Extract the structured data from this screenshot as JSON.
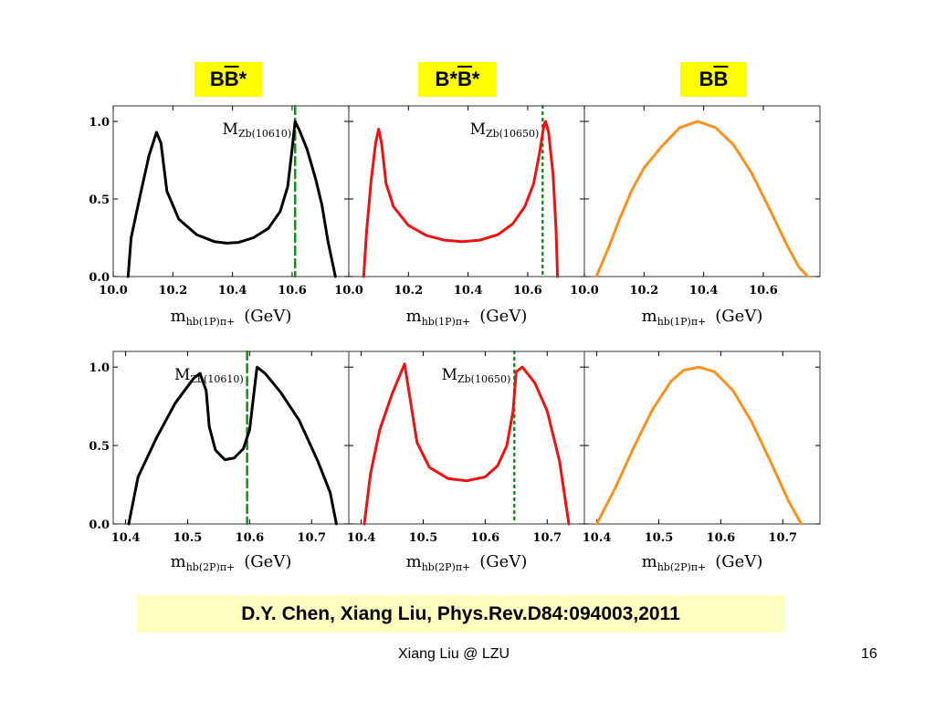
{
  "headers": [
    {
      "base": "B",
      "bar": "B",
      "tail": "*"
    },
    {
      "base": "B*",
      "bar": "B",
      "tail": "*"
    },
    {
      "base": "B",
      "bar": "B",
      "tail": ""
    }
  ],
  "reference": "D.Y. Chen, Xiang Liu, Phys.Rev.D84:094003,2011",
  "footer": {
    "author": "Xiang Liu @ LZU",
    "page": "16"
  },
  "chart_data": [
    {
      "type": "line",
      "row": 1,
      "col": 1,
      "color": "#000000",
      "marker": {
        "x": 10.61,
        "style": "dashed",
        "label": "M",
        "sub": "Zb(10610)"
      },
      "xlim": [
        10.0,
        10.79
      ],
      "ylim": [
        0,
        1.1
      ],
      "xticks": [
        "10.0",
        "10.2",
        "10.4",
        "10.6"
      ],
      "yticks": [
        "0.0",
        "0.5",
        "1.0"
      ],
      "xlabel": {
        "m": "m",
        "sub": "hb(1P)π+",
        "unit": "(GeV)"
      },
      "x": [
        10.05,
        10.06,
        10.09,
        10.12,
        10.145,
        10.16,
        10.18,
        10.22,
        10.28,
        10.34,
        10.38,
        10.42,
        10.47,
        10.52,
        10.56,
        10.585,
        10.6,
        10.61,
        10.625,
        10.65,
        10.68,
        10.7,
        10.72,
        10.745
      ],
      "y": [
        0,
        0.25,
        0.52,
        0.78,
        0.93,
        0.86,
        0.55,
        0.37,
        0.27,
        0.225,
        0.215,
        0.22,
        0.25,
        0.31,
        0.42,
        0.58,
        0.82,
        1.0,
        0.94,
        0.82,
        0.62,
        0.46,
        0.23,
        0
      ]
    },
    {
      "type": "line",
      "row": 1,
      "col": 2,
      "color": "#ee1111",
      "marker": {
        "x": 10.65,
        "style": "dotted",
        "label": "M",
        "sub": "Zb(10650)"
      },
      "xlim": [
        10.0,
        10.79
      ],
      "ylim": [
        0,
        1.1
      ],
      "xticks": [
        "10.0",
        "10.2",
        "10.4",
        "10.6"
      ],
      "yticks": [],
      "xlabel": {
        "m": "m",
        "sub": "hb(1P)π+",
        "unit": "(GeV)"
      },
      "x": [
        10.05,
        10.06,
        10.075,
        10.09,
        10.1,
        10.11,
        10.125,
        10.15,
        10.2,
        10.26,
        10.32,
        10.38,
        10.44,
        10.5,
        10.55,
        10.59,
        10.62,
        10.64,
        10.655,
        10.66,
        10.67,
        10.685,
        10.695,
        10.7
      ],
      "y": [
        0,
        0.3,
        0.62,
        0.86,
        0.95,
        0.86,
        0.6,
        0.45,
        0.33,
        0.265,
        0.235,
        0.225,
        0.235,
        0.27,
        0.34,
        0.45,
        0.6,
        0.8,
        0.98,
        1.0,
        0.93,
        0.66,
        0.3,
        0
      ]
    },
    {
      "type": "line",
      "row": 1,
      "col": 3,
      "color": "#f7921e",
      "marker": null,
      "xlim": [
        10.0,
        10.79
      ],
      "ylim": [
        0,
        1.1
      ],
      "xticks": [
        "10.0",
        "10.2",
        "10.4",
        "10.6"
      ],
      "yticks": [],
      "xlabel": {
        "m": "m",
        "sub": "hb(1P)π+",
        "unit": "(GeV)"
      },
      "x": [
        10.04,
        10.08,
        10.12,
        10.16,
        10.2,
        10.26,
        10.32,
        10.38,
        10.44,
        10.5,
        10.56,
        10.62,
        10.68,
        10.72,
        10.75
      ],
      "y": [
        0,
        0.18,
        0.38,
        0.56,
        0.7,
        0.84,
        0.96,
        1.0,
        0.96,
        0.85,
        0.67,
        0.44,
        0.2,
        0.06,
        0
      ]
    },
    {
      "type": "line",
      "row": 2,
      "col": 1,
      "color": "#000000",
      "marker": {
        "x": 10.596,
        "style": "dashed",
        "label": "M",
        "sub": "Zb(10610)"
      },
      "xlim": [
        10.38,
        10.76
      ],
      "ylim": [
        0,
        1.1
      ],
      "xticks": [
        "10.4",
        "10.5",
        "10.6",
        "10.7"
      ],
      "yticks": [
        "0.0",
        "0.5",
        "1.0"
      ],
      "xlabel": {
        "m": "m",
        "sub": "hb(2P)π+",
        "unit": "(GeV)"
      },
      "x": [
        10.405,
        10.42,
        10.45,
        10.48,
        10.51,
        10.52,
        10.53,
        10.535,
        10.545,
        10.56,
        10.575,
        10.59,
        10.6,
        10.606,
        10.612,
        10.625,
        10.65,
        10.68,
        10.71,
        10.73,
        10.74
      ],
      "y": [
        0,
        0.3,
        0.55,
        0.77,
        0.93,
        0.96,
        0.85,
        0.62,
        0.47,
        0.41,
        0.42,
        0.48,
        0.6,
        0.8,
        1.0,
        0.96,
        0.84,
        0.66,
        0.4,
        0.2,
        0
      ]
    },
    {
      "type": "line",
      "row": 2,
      "col": 2,
      "color": "#ee1111",
      "marker": {
        "x": 10.647,
        "style": "dotted",
        "label": "M",
        "sub": "Zb(10650)"
      },
      "xlim": [
        10.38,
        10.76
      ],
      "ylim": [
        0,
        1.1
      ],
      "xticks": [
        "10.4",
        "10.5",
        "10.6",
        "10.7"
      ],
      "yticks": [],
      "xlabel": {
        "m": "m",
        "sub": "hb(2P)π+",
        "unit": "(GeV)"
      },
      "x": [
        10.405,
        10.415,
        10.43,
        10.45,
        10.47,
        10.49,
        10.51,
        10.54,
        10.57,
        10.6,
        10.62,
        10.635,
        10.645,
        10.65,
        10.66,
        10.68,
        10.7,
        10.72,
        10.735
      ],
      "y": [
        0,
        0.32,
        0.6,
        0.83,
        1.02,
        0.52,
        0.36,
        0.29,
        0.275,
        0.3,
        0.37,
        0.5,
        0.72,
        0.97,
        1.0,
        0.9,
        0.72,
        0.4,
        0
      ]
    },
    {
      "type": "line",
      "row": 2,
      "col": 3,
      "color": "#f7921e",
      "marker": null,
      "xlim": [
        10.38,
        10.76
      ],
      "ylim": [
        0,
        1.1
      ],
      "xticks": [
        "10.4",
        "10.5",
        "10.6",
        "10.7"
      ],
      "yticks": [],
      "xlabel": {
        "m": "m",
        "sub": "hb(2P)π+",
        "unit": "(GeV)"
      },
      "x": [
        10.4,
        10.43,
        10.46,
        10.49,
        10.52,
        10.54,
        10.565,
        10.59,
        10.62,
        10.65,
        10.68,
        10.71,
        10.73
      ],
      "y": [
        0,
        0.23,
        0.49,
        0.73,
        0.91,
        0.98,
        1.0,
        0.97,
        0.85,
        0.65,
        0.4,
        0.14,
        0
      ]
    }
  ]
}
